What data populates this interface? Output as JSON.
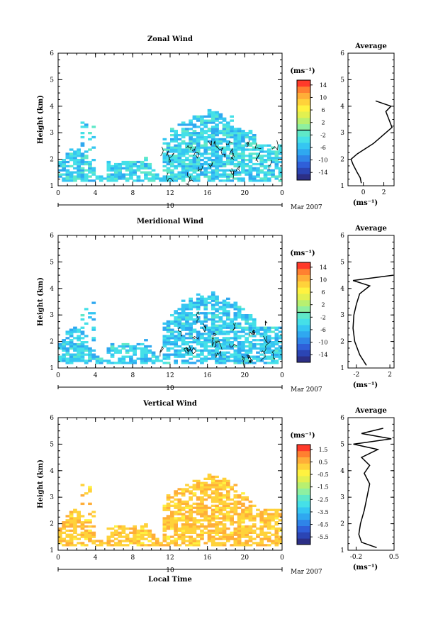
{
  "chart_data": [
    {
      "type": "heatmap",
      "title": "Zonal Wind",
      "ylabel": "Height (km)",
      "ylim": [
        1,
        6
      ],
      "yticks": [
        "1",
        "2",
        "3",
        "4",
        "5",
        "6"
      ],
      "xlim": [
        0,
        24
      ],
      "xticks": [
        "0",
        "4",
        "8",
        "12",
        "16",
        "20",
        "0"
      ],
      "date_axis": {
        "day": "10",
        "month_label": "Mar 2007"
      },
      "colorbar": {
        "unit": "(ms⁻¹)",
        "ticks": [
          "14",
          "10",
          "6",
          "2",
          "-2",
          "-6",
          "-10",
          "-14"
        ],
        "min": -16,
        "max": 16,
        "zero_line": 0
      },
      "field_mean": -4,
      "field_spread": 5,
      "avg_profile": {
        "title": "Average",
        "xlabel": "(ms⁻¹)",
        "xticks": [
          "0",
          "2"
        ],
        "xlim": [
          -1.5,
          3
        ],
        "ylim": [
          1,
          6
        ],
        "points": [
          [
            -0.2,
            1.1
          ],
          [
            -0.3,
            1.3
          ],
          [
            -0.6,
            1.5
          ],
          [
            -1.0,
            1.8
          ],
          [
            -1.2,
            2.0
          ],
          [
            -0.6,
            2.2
          ],
          [
            0.2,
            2.4
          ],
          [
            1.0,
            2.6
          ],
          [
            1.6,
            2.8
          ],
          [
            2.2,
            3.0
          ],
          [
            2.8,
            3.2
          ],
          [
            2.5,
            3.5
          ],
          [
            2.2,
            3.8
          ],
          [
            2.7,
            4.0
          ],
          [
            1.2,
            4.2
          ]
        ]
      }
    },
    {
      "type": "heatmap",
      "title": "Meridional Wind",
      "ylabel": "Height (km)",
      "ylim": [
        1,
        6
      ],
      "yticks": [
        "1",
        "2",
        "3",
        "4",
        "5",
        "6"
      ],
      "xlim": [
        0,
        24
      ],
      "xticks": [
        "0",
        "4",
        "8",
        "12",
        "16",
        "20",
        "0"
      ],
      "date_axis": {
        "day": "10",
        "month_label": "Mar 2007"
      },
      "colorbar": {
        "unit": "(ms⁻¹)",
        "ticks": [
          "14",
          "10",
          "6",
          "2",
          "-2",
          "-6",
          "-10",
          "-14"
        ],
        "min": -16,
        "max": 16,
        "zero_line": 0
      },
      "field_mean": -4.5,
      "field_spread": 5,
      "avg_profile": {
        "title": "Average",
        "xlabel": "(ms⁻¹)",
        "xticks": [
          "-2",
          "2"
        ],
        "xlim": [
          -3,
          2.5
        ],
        "ylim": [
          1,
          6
        ],
        "points": [
          [
            -0.8,
            1.1
          ],
          [
            -1.6,
            1.5
          ],
          [
            -2.2,
            2.0
          ],
          [
            -2.4,
            2.5
          ],
          [
            -2.3,
            3.0
          ],
          [
            -2.0,
            3.4
          ],
          [
            -1.6,
            3.8
          ],
          [
            -0.4,
            4.1
          ],
          [
            -2.4,
            4.3
          ],
          [
            2.4,
            4.5
          ]
        ]
      }
    },
    {
      "type": "heatmap",
      "title": "Vertical Wind",
      "ylabel": "Height (km)",
      "ylim": [
        1,
        6
      ],
      "yticks": [
        "1",
        "2",
        "3",
        "4",
        "5",
        "6"
      ],
      "xlim": [
        0,
        24
      ],
      "xticks": [
        "0",
        "4",
        "8",
        "12",
        "16",
        "20",
        "0"
      ],
      "xlabel": "Local Time",
      "date_axis": {
        "day": "10",
        "month_label": "Mar 2007"
      },
      "colorbar": {
        "unit": "(ms⁻¹)",
        "ticks": [
          "1.5",
          "0.5",
          "-0.5",
          "-1.5",
          "-2.5",
          "-3.5",
          "-4.5",
          "-5.5"
        ],
        "min": -6,
        "max": 2
      },
      "field_mean": 0.4,
      "field_spread": 0.8,
      "avg_profile": {
        "title": "Average",
        "xlabel": "(ms⁻¹)",
        "xticks": [
          "-0.2",
          "0.5"
        ],
        "xlim": [
          -0.35,
          0.5
        ],
        "ylim": [
          1,
          6
        ],
        "points": [
          [
            0.18,
            1.1
          ],
          [
            -0.1,
            1.3
          ],
          [
            -0.15,
            1.6
          ],
          [
            -0.12,
            2.0
          ],
          [
            -0.05,
            2.5
          ],
          [
            0.0,
            3.0
          ],
          [
            0.05,
            3.5
          ],
          [
            -0.05,
            3.9
          ],
          [
            0.05,
            4.2
          ],
          [
            -0.1,
            4.5
          ],
          [
            0.2,
            4.8
          ],
          [
            -0.25,
            5.0
          ],
          [
            0.45,
            5.2
          ],
          [
            -0.1,
            5.4
          ],
          [
            0.3,
            5.6
          ]
        ]
      }
    }
  ]
}
